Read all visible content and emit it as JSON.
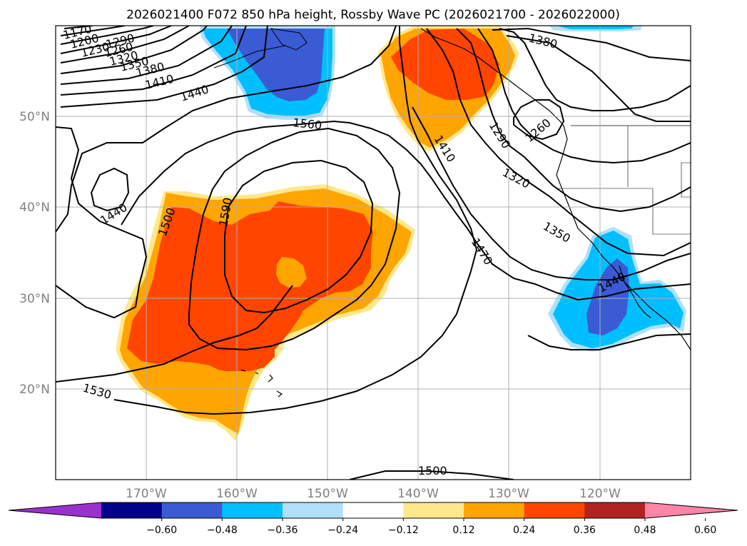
{
  "title": "2026021400 F072 850 hPa height, Rossby Wave PC (2026021700 - 2026022000)",
  "lat_labels": [
    "50°N",
    "40°N",
    "30°N",
    "20°N"
  ],
  "lon_labels": [
    "170°W",
    "160°W",
    "150°W",
    "140°W",
    "130°W",
    "120°W"
  ],
  "contour_labels": [
    "1170",
    "1200",
    "1230",
    "1260",
    "1290",
    "1320",
    "1350",
    "1380",
    "1410",
    "1440",
    "1560",
    "1590",
    "1500",
    "1440",
    "1530",
    "1500",
    "1380",
    "1410",
    "1290",
    "1260",
    "1320",
    "1470",
    "1350",
    "1440"
  ],
  "colorbar": {
    "ticks": [
      "−0.60",
      "−0.48",
      "−0.36",
      "−0.24",
      "−0.12",
      "0.12",
      "0.24",
      "0.36",
      "0.48",
      "0.60"
    ],
    "colors": [
      "#9932cc",
      "#00008b",
      "#3a5bd4",
      "#00bfff",
      "#b0e0fa",
      "#ffffff",
      "#ffe88c",
      "#ffa500",
      "#ff4500",
      "#b22222",
      "#ff85a8"
    ]
  },
  "colors": {
    "pos_low": "#ffe88c",
    "pos_mid": "#ffa500",
    "pos_high": "#ff4500",
    "neg_low": "#b0e0fa",
    "neg_mid": "#00bfff",
    "neg_high": "#3a5bd4",
    "grid": "#b0b0b0",
    "contour": "#000000"
  }
}
